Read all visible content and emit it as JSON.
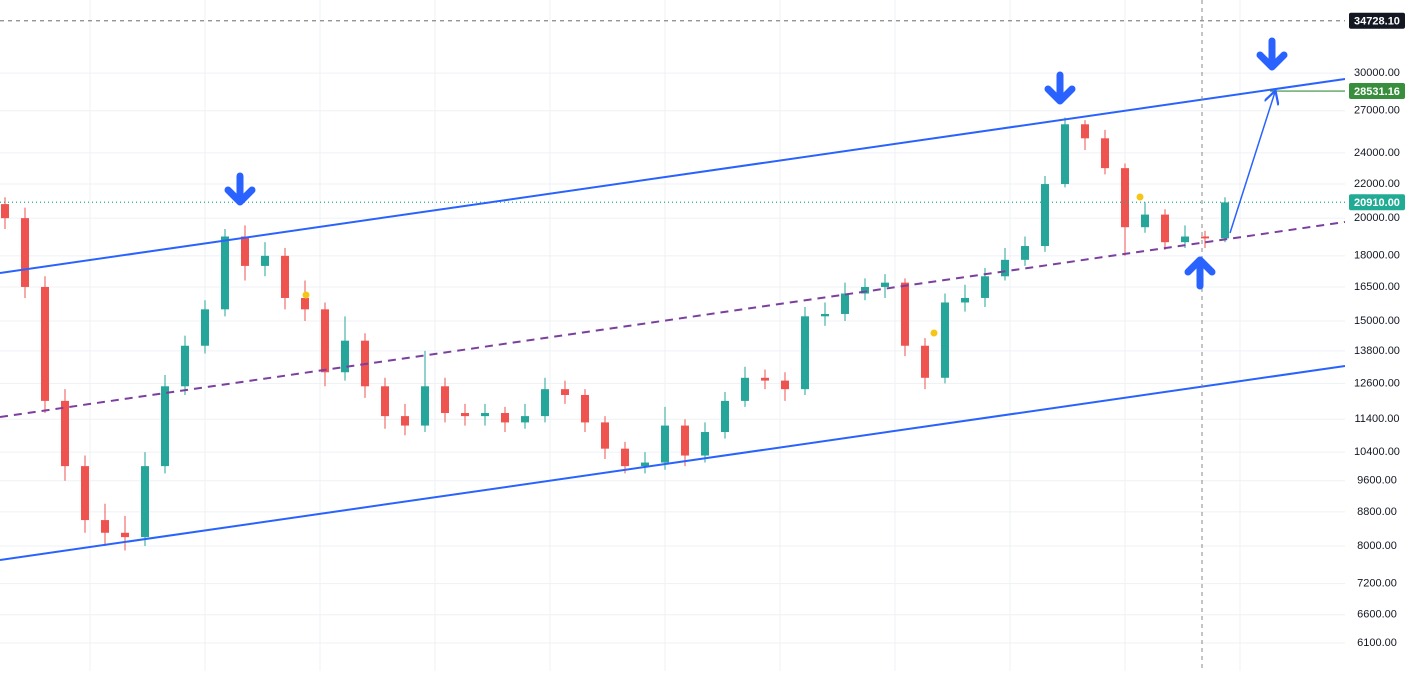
{
  "chart_data": {
    "type": "candlestick",
    "log_scale": true,
    "grid": true,
    "up_color": "#26a69a",
    "down_color": "#ef5350",
    "open": [
      20800,
      20000,
      16500,
      12000,
      10000,
      8600,
      8300,
      8200,
      10000,
      12500,
      14000,
      15500,
      19000,
      17500,
      18000,
      16000,
      15500,
      13000,
      14200,
      12500,
      11500,
      11200,
      12500,
      11600,
      11500,
      11600,
      11300,
      11500,
      12400,
      12200,
      11300,
      10500,
      10000,
      10100,
      11200,
      10300,
      11000,
      12000,
      12800,
      12700,
      12400,
      15200,
      15300,
      16200,
      16500,
      16700,
      14000,
      12800,
      15800,
      16000,
      17000,
      17800,
      18500,
      22000,
      26000,
      25000,
      23000,
      19500,
      20200,
      18700,
      19000,
      18900
    ],
    "high": [
      21200,
      20600,
      17000,
      12400,
      10300,
      9000,
      8700,
      10400,
      12900,
      14400,
      15900,
      19400,
      19600,
      18700,
      18400,
      16800,
      15800,
      15200,
      14500,
      12800,
      11900,
      13800,
      12800,
      11900,
      11900,
      11800,
      11900,
      12800,
      12700,
      12400,
      11500,
      10700,
      10400,
      11800,
      11400,
      11300,
      12300,
      13200,
      13100,
      13000,
      15600,
      15800,
      16700,
      16900,
      17100,
      16900,
      14300,
      16200,
      16600,
      17400,
      18400,
      19000,
      22500,
      26500,
      26300,
      25600,
      23300,
      20900,
      20500,
      19600,
      19300,
      21200
    ],
    "low": [
      19400,
      16000,
      11600,
      9600,
      8300,
      8000,
      7900,
      8000,
      9800,
      12200,
      13700,
      15200,
      16800,
      17000,
      15500,
      15000,
      12500,
      12700,
      12100,
      11100,
      10900,
      11000,
      11300,
      11200,
      11200,
      11000,
      11100,
      11300,
      11900,
      11000,
      10200,
      9800,
      9800,
      9900,
      10000,
      10100,
      10800,
      11800,
      12400,
      12000,
      12200,
      14800,
      15000,
      15900,
      16000,
      13600,
      12400,
      12600,
      15400,
      15600,
      16800,
      17500,
      18200,
      21800,
      24200,
      22600,
      18000,
      19200,
      18300,
      18400,
      18400,
      18700
    ],
    "close": [
      20000,
      16500,
      12000,
      10000,
      8600,
      8300,
      8200,
      10000,
      12500,
      14000,
      15500,
      19000,
      17500,
      18000,
      16000,
      15500,
      13000,
      14200,
      12500,
      11500,
      11200,
      12500,
      11600,
      11500,
      11600,
      11300,
      11500,
      12400,
      12200,
      11300,
      10500,
      10000,
      10100,
      11200,
      10300,
      11000,
      12000,
      12800,
      12700,
      12400,
      15200,
      15300,
      16200,
      16500,
      16700,
      14000,
      12800,
      15800,
      16000,
      17000,
      17800,
      18500,
      22000,
      26000,
      25000,
      23000,
      19500,
      20200,
      18700,
      19000,
      18900,
      20900
    ],
    "ylim": [
      5640,
      36800
    ],
    "yticks": [
      {
        "value": 6100,
        "label": "6100.00"
      },
      {
        "value": 6600,
        "label": "6600.00"
      },
      {
        "value": 7200,
        "label": "7200.00"
      },
      {
        "value": 8000,
        "label": "8000.00"
      },
      {
        "value": 8800,
        "label": "8800.00"
      },
      {
        "value": 9600,
        "label": "9600.00"
      },
      {
        "value": 10400,
        "label": "10400.00"
      },
      {
        "value": 11400,
        "label": "11400.00"
      },
      {
        "value": 12600,
        "label": "12600.00"
      },
      {
        "value": 13800,
        "label": "13800.00"
      },
      {
        "value": 15000,
        "label": "15000.00"
      },
      {
        "value": 16500,
        "label": "16500.00"
      },
      {
        "value": 18000,
        "label": "18000.00"
      },
      {
        "value": 20000,
        "label": "20000.00"
      },
      {
        "value": 22000,
        "label": "22000.00"
      },
      {
        "value": 24000,
        "label": "24000.00"
      },
      {
        "value": 27000,
        "label": "27000.00"
      },
      {
        "value": 30000,
        "label": "30000.00"
      }
    ],
    "price_labels": [
      {
        "value": 34728.1,
        "label": "34728.10",
        "color": "#131722"
      },
      {
        "value": 28531.16,
        "label": "28531.16",
        "color": "#388e3c"
      },
      {
        "value": 20910,
        "label": "20910.00",
        "color": "#22ab94"
      }
    ]
  }
}
